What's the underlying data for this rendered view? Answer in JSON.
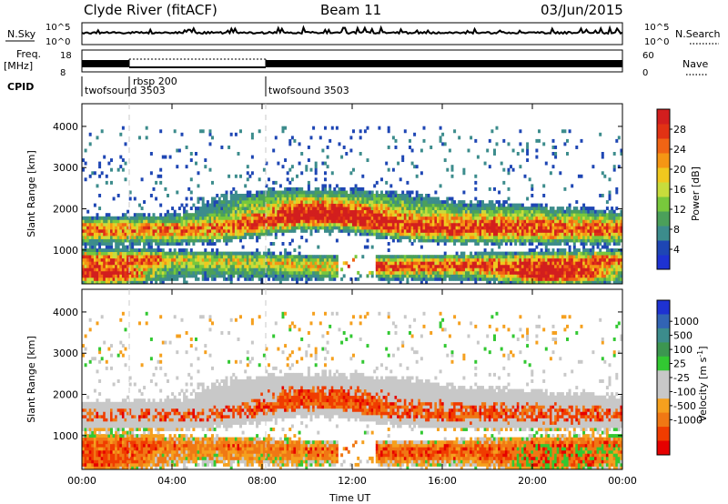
{
  "header": {
    "station": "Clyde River (fitACF)",
    "beam": "Beam 11",
    "date": "03/Jun/2015"
  },
  "strips": {
    "nsky_label": "N.Sky",
    "nsky_ticks": [
      "10^5",
      "10^0"
    ],
    "nsearch_label": "N.Search",
    "freq_label_1": "Freq.",
    "freq_label_2": "[MHz]",
    "freq_ticks": [
      "18",
      "8"
    ],
    "nave_label": "Nave",
    "nave_ticks": [
      "60",
      "0"
    ],
    "cpid_label": "CPID",
    "cpid_segments": [
      {
        "label": "twofsound 3503",
        "start_h": 0
      },
      {
        "label": "rbsp 200",
        "start_h": 2
      },
      {
        "label": "twofsound 3503",
        "start_h": 8
      }
    ]
  },
  "colors": {
    "power": [
      "#1e32d2",
      "#1e46b4",
      "#3c8c8c",
      "#4ba05a",
      "#78c83c",
      "#c8dc3c",
      "#f0c81e",
      "#f59614",
      "#f06414",
      "#e13214",
      "#d21e1e"
    ],
    "velocity": [
      "#e60000",
      "#f03c00",
      "#f07814",
      "#f5a01e",
      "#c8c8c8",
      "#c8c8c8",
      "#32c832",
      "#3c9650",
      "#3c8c8c",
      "#3264b4",
      "#1e32d2"
    ]
  },
  "chart_data": [
    {
      "type": "heatmap",
      "name": "power",
      "ylabel": "Slant Range [km]",
      "ylim": [
        180,
        4550
      ],
      "y_ticks": [
        1000,
        2000,
        3000,
        4000
      ],
      "colorbar_label": "Power [dB]",
      "colorbar_ticks": [
        4,
        8,
        12,
        16,
        20,
        24,
        28
      ],
      "colorbar_range": [
        0,
        32
      ]
    },
    {
      "type": "heatmap",
      "name": "velocity",
      "ylabel": "Slant Range [km]",
      "ylim": [
        180,
        4550
      ],
      "y_ticks": [
        1000,
        2000,
        3000,
        4000
      ],
      "colorbar_label": "Velocity [m s^-1]",
      "colorbar_ticks": [
        "1000",
        "500",
        "100",
        "25",
        "-25",
        "-100",
        "-500",
        "-1000"
      ],
      "xlabel": "Time UT",
      "x_ticks": [
        "00:00",
        "04:00",
        "08:00",
        "12:00",
        "16:00",
        "20:00",
        "00:00"
      ],
      "xlim_hours": [
        0,
        24
      ]
    }
  ]
}
